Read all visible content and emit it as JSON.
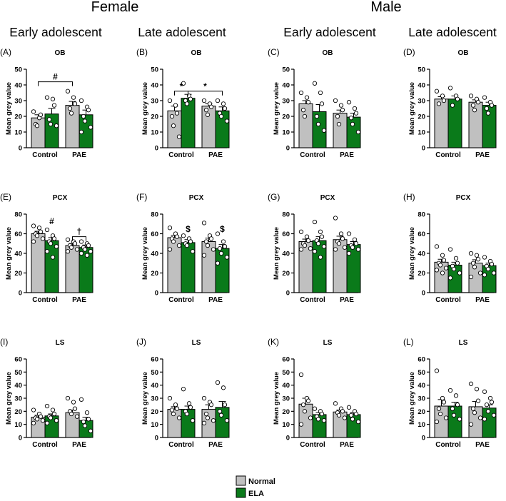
{
  "headers": {
    "female": "Female",
    "male": "Male",
    "columns": [
      "Early adolescent",
      "Late adolescent",
      "Early adolescent",
      "Late adolescent"
    ]
  },
  "legend": {
    "items": [
      {
        "label": "Normal",
        "color": "#c0c0c0"
      },
      {
        "label": "ELA",
        "color": "#0a7a1a"
      }
    ]
  },
  "chart_data": [
    {
      "label": "(A)",
      "title": "OB",
      "type": "bar",
      "categories": [
        "Control",
        "PAE"
      ],
      "ylabel": "Mean grey value",
      "ylim": [
        0,
        50
      ],
      "ticks": [
        0,
        10,
        20,
        30,
        40,
        50
      ],
      "series": [
        {
          "name": "Normal",
          "values": [
            19,
            27
          ],
          "errors": [
            2,
            2.5
          ]
        },
        {
          "name": "ELA",
          "values": [
            21.5,
            21
          ],
          "errors": [
            3.5,
            3
          ]
        }
      ],
      "points": {
        "Normal": [
          [
            23,
            19,
            21,
            15,
            14
          ],
          [
            36,
            32,
            28,
            25,
            22
          ]
        ],
        "ELA": [
          [
            32,
            31,
            27,
            18,
            15,
            14
          ],
          [
            30,
            26,
            24,
            20,
            17,
            13,
            10
          ]
        ]
      },
      "annotations": [
        {
          "text": "#",
          "from": "Control.Normal",
          "to": "PAE.Normal",
          "level": 42
        }
      ]
    },
    {
      "label": "(B)",
      "title": "OB",
      "type": "bar",
      "categories": [
        "Control",
        "PAE"
      ],
      "ylabel": "Mean grey value",
      "ylim": [
        0,
        50
      ],
      "ticks": [
        0,
        10,
        20,
        30,
        40,
        50
      ],
      "series": [
        {
          "name": "Normal",
          "values": [
            23.5,
            26.5
          ],
          "errors": [
            3,
            1.5
          ]
        },
        {
          "name": "ELA",
          "values": [
            31.5,
            23.5
          ],
          "errors": [
            2.5,
            2.5
          ]
        }
      ],
      "points": {
        "Normal": [
          [
            30,
            27,
            22,
            20,
            14,
            7
          ],
          [
            30,
            28,
            26,
            24,
            21
          ]
        ],
        "ELA": [
          [
            41,
            33,
            31,
            30,
            28
          ],
          [
            30,
            28,
            25,
            22,
            20,
            17
          ]
        ]
      },
      "annotations": [
        {
          "text": "*",
          "from": "Control.Normal",
          "to": "Control.ELA",
          "level": 36
        },
        {
          "text": "*",
          "from": "Control.ELA",
          "to": "PAE.ELA",
          "level": 36
        }
      ]
    },
    {
      "label": "(C)",
      "title": "OB",
      "type": "bar",
      "categories": [
        "Control",
        "PAE"
      ],
      "ylabel": "Mean grey value",
      "ylim": [
        0,
        50
      ],
      "ticks": [
        0,
        10,
        20,
        30,
        40,
        50
      ],
      "series": [
        {
          "name": "Normal",
          "values": [
            28,
            22
          ],
          "errors": [
            2,
            2
          ]
        },
        {
          "name": "ELA",
          "values": [
            23,
            19.5
          ],
          "errors": [
            4.5,
            2.5
          ]
        }
      ],
      "points": {
        "Normal": [
          [
            35,
            32,
            29,
            24,
            20
          ],
          [
            30,
            27,
            24,
            20,
            15
          ]
        ],
        "ELA": [
          [
            41,
            35,
            28,
            20,
            15,
            11
          ],
          [
            29,
            25,
            22,
            19,
            15,
            10
          ]
        ]
      },
      "annotations": []
    },
    {
      "label": "(D)",
      "title": "OB",
      "type": "bar",
      "categories": [
        "Control",
        "PAE"
      ],
      "ylabel": "Mean grey value",
      "ylim": [
        0,
        50
      ],
      "ticks": [
        0,
        10,
        20,
        30,
        40,
        50
      ],
      "series": [
        {
          "name": "Normal",
          "values": [
            31,
            29
          ],
          "errors": [
            1.5,
            1.5
          ]
        },
        {
          "name": "ELA",
          "values": [
            31,
            27
          ],
          "errors": [
            2,
            2
          ]
        }
      ],
      "points": {
        "Normal": [
          [
            36,
            33,
            30,
            28
          ],
          [
            33,
            31,
            29,
            27,
            24
          ]
        ],
        "ELA": [
          [
            38,
            33,
            31,
            27
          ],
          [
            32,
            29,
            27,
            25,
            22
          ]
        ]
      },
      "annotations": []
    },
    {
      "label": "(E)",
      "title": "PCX",
      "type": "bar",
      "categories": [
        "Control",
        "PAE"
      ],
      "ylabel": "Mean grey value",
      "ylim": [
        0,
        80
      ],
      "ticks": [
        0,
        20,
        40,
        60,
        80
      ],
      "series": [
        {
          "name": "Normal",
          "values": [
            60,
            48
          ],
          "errors": [
            2.5,
            2
          ]
        },
        {
          "name": "ELA",
          "values": [
            53,
            46
          ],
          "errors": [
            3,
            2.5
          ]
        }
      ],
      "points": {
        "Normal": [
          [
            68,
            66,
            62,
            60,
            58,
            55,
            52
          ],
          [
            54,
            52,
            50,
            48,
            46,
            44,
            42
          ]
        ],
        "ELA": [
          [
            64,
            58,
            55,
            52,
            50,
            47,
            42,
            36
          ],
          [
            52,
            50,
            48,
            46,
            44,
            42,
            40,
            38
          ]
        ]
      },
      "annotations": [
        {
          "text": "#",
          "at": "Control.ELA",
          "level": 70
        },
        {
          "text": "†",
          "from": "PAE.Normal",
          "to": "PAE.ELA",
          "level": 57
        }
      ]
    },
    {
      "label": "(F)",
      "title": "PCX",
      "type": "bar",
      "categories": [
        "Control",
        "PAE"
      ],
      "ylabel": "Mean grey value",
      "ylim": [
        0,
        80
      ],
      "ticks": [
        0,
        20,
        40,
        60,
        80
      ],
      "series": [
        {
          "name": "Normal",
          "values": [
            56,
            52
          ],
          "errors": [
            2.5,
            3.5
          ]
        },
        {
          "name": "ELA",
          "values": [
            51,
            45
          ],
          "errors": [
            3,
            4
          ]
        }
      ],
      "points": {
        "Normal": [
          [
            66,
            60,
            57,
            55,
            52,
            48,
            44
          ],
          [
            71,
            58,
            55,
            52,
            48,
            44,
            38
          ]
        ],
        "ELA": [
          [
            58,
            55,
            52,
            50,
            48,
            42
          ],
          [
            60,
            52,
            47,
            45,
            40,
            36,
            30
          ]
        ]
      },
      "annotations": [
        {
          "text": "$",
          "at": "Control.ELA",
          "level": 62
        },
        {
          "text": "$",
          "at": "PAE.ELA",
          "level": 62
        }
      ]
    },
    {
      "label": "(G)",
      "title": "PCX",
      "type": "bar",
      "categories": [
        "Control",
        "PAE"
      ],
      "ylabel": "Mean grey value",
      "ylim": [
        0,
        80
      ],
      "ticks": [
        0,
        20,
        40,
        60,
        80
      ],
      "series": [
        {
          "name": "Normal",
          "values": [
            52,
            54
          ],
          "errors": [
            2.5,
            3.5
          ]
        },
        {
          "name": "ELA",
          "values": [
            53,
            49
          ],
          "errors": [
            4,
            3
          ]
        }
      ],
      "points": {
        "Normal": [
          [
            62,
            57,
            53,
            50,
            48,
            45,
            44
          ],
          [
            76,
            60,
            55,
            52,
            50,
            46,
            44
          ]
        ],
        "ELA": [
          [
            72,
            62,
            57,
            53,
            50,
            47,
            42,
            36
          ],
          [
            60,
            54,
            50,
            48,
            46,
            44,
            40
          ]
        ]
      },
      "annotations": []
    },
    {
      "label": "(H)",
      "title": "PCX",
      "type": "bar",
      "categories": [
        "Control",
        "PAE"
      ],
      "ylabel": "Mean grey value",
      "ylim": [
        0,
        80
      ],
      "ticks": [
        0,
        20,
        40,
        60,
        80
      ],
      "series": [
        {
          "name": "Normal",
          "values": [
            31,
            30
          ],
          "errors": [
            3,
            3.5
          ]
        },
        {
          "name": "ELA",
          "values": [
            28,
            27.5
          ],
          "errors": [
            3,
            2.5
          ]
        }
      ],
      "points": {
        "Normal": [
          [
            47,
            38,
            33,
            30,
            28,
            25,
            23,
            20
          ],
          [
            40,
            38,
            34,
            30,
            26,
            20,
            16
          ]
        ],
        "ELA": [
          [
            44,
            35,
            30,
            27,
            24,
            20,
            15
          ],
          [
            36,
            32,
            29,
            27,
            24,
            20,
            18
          ]
        ]
      },
      "annotations": []
    },
    {
      "label": "(I)",
      "title": "LS",
      "type": "bar",
      "categories": [
        "Control",
        "PAE"
      ],
      "ylabel": "Mean grey value",
      "ylim": [
        0,
        60
      ],
      "ticks": [
        0,
        10,
        20,
        30,
        40,
        50,
        60
      ],
      "series": [
        {
          "name": "Normal",
          "values": [
            15.5,
            19
          ],
          "errors": [
            1.5,
            2
          ]
        },
        {
          "name": "ELA",
          "values": [
            16.5,
            13
          ],
          "errors": [
            1.5,
            2.5
          ]
        }
      ],
      "points": {
        "Normal": [
          [
            21,
            18,
            16,
            15,
            14,
            13,
            11
          ],
          [
            30,
            27,
            22,
            20,
            18,
            16
          ]
        ],
        "ELA": [
          [
            24,
            21,
            18,
            16,
            15,
            13,
            11
          ],
          [
            29,
            19,
            14,
            12,
            9,
            5
          ]
        ]
      },
      "annotations": []
    },
    {
      "label": "(J)",
      "title": "LS",
      "type": "bar",
      "categories": [
        "Control",
        "PAE"
      ],
      "ylabel": "Mean grey value",
      "ylim": [
        0,
        60
      ],
      "ticks": [
        0,
        10,
        20,
        30,
        40,
        50,
        60
      ],
      "series": [
        {
          "name": "Normal",
          "values": [
            21.5,
            21.5
          ],
          "errors": [
            2,
            3.5
          ]
        },
        {
          "name": "ELA",
          "values": [
            21.5,
            23
          ],
          "errors": [
            2.5,
            4.5
          ]
        }
      ],
      "points": {
        "Normal": [
          [
            30,
            25,
            22,
            21,
            18,
            15
          ],
          [
            30,
            27,
            25,
            18,
            15,
            13,
            11
          ]
        ],
        "ELA": [
          [
            37,
            26,
            23,
            20,
            18,
            13
          ],
          [
            42,
            38,
            25,
            20,
            17,
            13
          ]
        ]
      },
      "annotations": []
    },
    {
      "label": "(K)",
      "title": "LS",
      "type": "bar",
      "categories": [
        "Control",
        "PAE"
      ],
      "ylabel": "Mean grey value",
      "ylim": [
        0,
        60
      ],
      "ticks": [
        0,
        10,
        20,
        30,
        40,
        50,
        60
      ],
      "series": [
        {
          "name": "Normal",
          "values": [
            25.5,
            19.5
          ],
          "errors": [
            4.5,
            1.5
          ]
        },
        {
          "name": "ELA",
          "values": [
            17.5,
            17.5
          ],
          "errors": [
            1.5,
            1.5
          ]
        }
      ],
      "points": {
        "Normal": [
          [
            48,
            30,
            28,
            25,
            20,
            15,
            10
          ],
          [
            26,
            22,
            20,
            19,
            17,
            15
          ]
        ],
        "ELA": [
          [
            22,
            20,
            18,
            16,
            14,
            13
          ],
          [
            23,
            20,
            18,
            17,
            14,
            12
          ]
        ]
      },
      "annotations": []
    },
    {
      "label": "(L)",
      "title": "LS",
      "type": "bar",
      "categories": [
        "Control",
        "PAE"
      ],
      "ylabel": "Mean grey value",
      "ylim": [
        0,
        60
      ],
      "ticks": [
        0,
        10,
        20,
        30,
        40,
        50,
        60
      ],
      "series": [
        {
          "name": "Normal",
          "values": [
            24,
            23.5
          ],
          "errors": [
            5,
            4
          ]
        },
        {
          "name": "ELA",
          "values": [
            24,
            22.5
          ],
          "errors": [
            3,
            2.5
          ]
        }
      ],
      "points": {
        "Normal": [
          [
            51,
            30,
            27,
            22,
            18,
            15,
            12
          ],
          [
            41,
            37,
            28,
            22,
            19,
            15,
            10
          ]
        ],
        "ELA": [
          [
            36,
            32,
            25,
            22,
            17,
            14
          ],
          [
            35,
            30,
            27,
            25,
            20,
            17,
            14
          ]
        ]
      },
      "annotations": []
    }
  ]
}
